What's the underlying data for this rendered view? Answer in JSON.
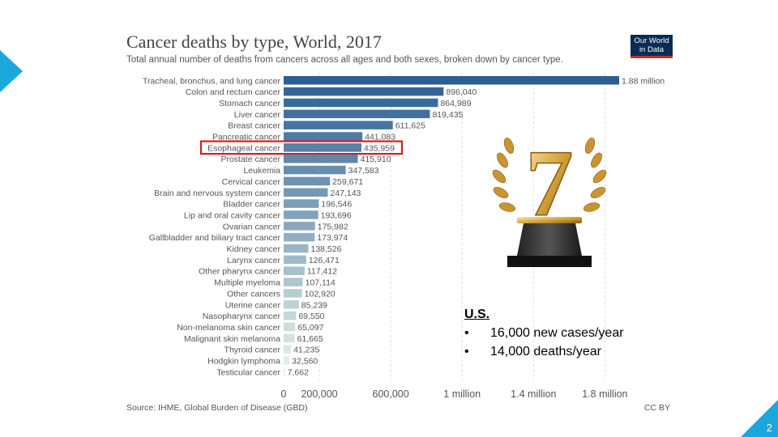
{
  "slide": {
    "number": "2"
  },
  "chart_data": {
    "type": "bar",
    "orientation": "horizontal",
    "title": "Cancer deaths by type, World, 2017",
    "subtitle": "Total annual number of deaths from cancers across all ages and both sexes, broken down by cancer type.",
    "source": "Source: IHME, Global Burden of Disease (GBD)",
    "license": "CC BY",
    "logo": [
      "Our World",
      "in Data"
    ],
    "categories": [
      "Tracheal, bronchus, and lung cancer",
      "Colon and rectum cancer",
      "Stomach cancer",
      "Liver cancer",
      "Breast cancer",
      "Pancreatic cancer",
      "Esophageal cancer",
      "Prostate cancer",
      "Leukemia",
      "Cervical cancer",
      "Brain and nervous system cancer",
      "Bladder cancer",
      "Lip and oral cavity cancer",
      "Ovarian cancer",
      "Gallbladder and biliary tract cancer",
      "Kidney cancer",
      "Larynx cancer",
      "Other pharynx cancer",
      "Multiple myeloma",
      "Other cancers",
      "Uterine cancer",
      "Nasopharynx cancer",
      "Non-melanoma skin cancer",
      "Malignant skin melanoma",
      "Thyroid cancer",
      "Hodgkin lymphoma",
      "Testicular cancer"
    ],
    "values": [
      1880000,
      896040,
      864989,
      819435,
      611625,
      441083,
      435959,
      415910,
      347583,
      259671,
      247143,
      196546,
      193696,
      175982,
      173974,
      138526,
      126471,
      117412,
      107114,
      102920,
      85239,
      69550,
      65097,
      61665,
      41235,
      32560,
      7662
    ],
    "value_labels": [
      "1.88 million",
      "896,040",
      "864,989",
      "819,435",
      "611,625",
      "441,083",
      "435,959",
      "415,910",
      "347,583",
      "259,671",
      "247,143",
      "196,546",
      "193,696",
      "175,982",
      "173,974",
      "138,526",
      "126,471",
      "117,412",
      "107,114",
      "102,920",
      "85,239",
      "69,550",
      "65,097",
      "61,665",
      "41,235",
      "32,560",
      "7,662"
    ],
    "highlighted": "Esophageal cancer",
    "xlim": [
      0,
      1880000
    ],
    "xticks": [
      0,
      200000,
      600000,
      1000000,
      1400000,
      1800000
    ],
    "xtick_labels": [
      "0",
      "200,000",
      "600,000",
      "1 million",
      "1.4 million",
      "1.8 million"
    ],
    "grid": "vertical dashed"
  },
  "annotation": {
    "title": "U.S.",
    "items": [
      "16,000 new cases/year",
      "14,000 deaths/year"
    ]
  },
  "trophy": {
    "icon": "trophy-icon",
    "number": "7"
  }
}
